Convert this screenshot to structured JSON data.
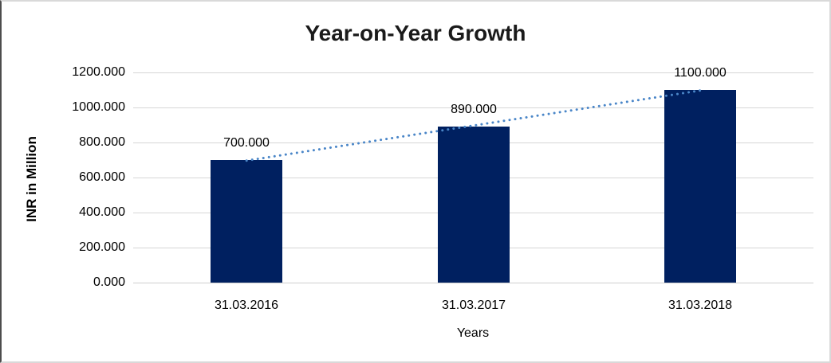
{
  "window": {
    "background": "#ffffff",
    "border_left_color": "#4d4d4d",
    "border_color": "#d9d9d9"
  },
  "chart_data": {
    "type": "bar",
    "title": "Year-on-Year Growth",
    "xlabel": "Years",
    "ylabel": "INR in Million",
    "categories": [
      "31.03.2016",
      "31.03.2017",
      "31.03.2018"
    ],
    "values": [
      700,
      890,
      1100
    ],
    "data_labels": [
      "700.000",
      "890.000",
      "1100.000"
    ],
    "yticks": [
      0,
      200,
      400,
      600,
      800,
      1000,
      1200
    ],
    "ytick_labels": [
      "0.000",
      "200.000",
      "400.000",
      "600.000",
      "800.000",
      "1000.000",
      "1200.000"
    ],
    "ylim": [
      0,
      1200
    ],
    "grid": true,
    "legend": false,
    "bar_color": "#002060",
    "gridline_color": "#d6d6d6",
    "text_color": "#000000",
    "trendline": {
      "type": "linear",
      "style": "dotted",
      "color": "#4a86c8",
      "fit_values": [
        696.667,
        1096.667
      ]
    }
  }
}
